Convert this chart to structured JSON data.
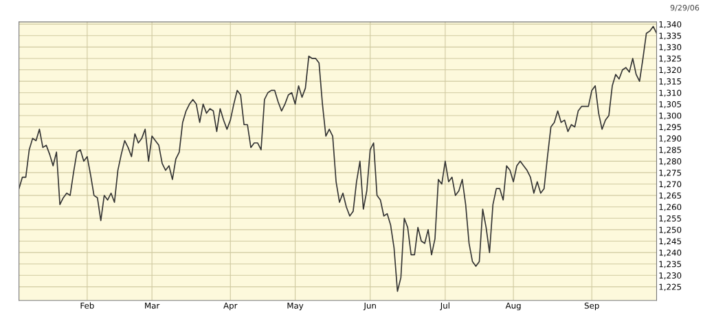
{
  "chart_data": {
    "type": "line",
    "annotations": [
      "9/29/06"
    ],
    "categories": [
      null,
      null,
      null,
      null,
      null,
      null,
      null,
      null,
      null,
      null,
      null,
      null,
      null,
      null,
      null,
      null,
      null,
      null,
      null,
      null,
      "Feb",
      null,
      null,
      null,
      null,
      null,
      null,
      null,
      null,
      null,
      null,
      null,
      null,
      null,
      null,
      null,
      null,
      null,
      null,
      "Mar",
      null,
      null,
      null,
      null,
      null,
      null,
      null,
      null,
      null,
      null,
      null,
      null,
      null,
      null,
      null,
      null,
      null,
      null,
      null,
      null,
      null,
      null,
      "Apr",
      null,
      null,
      null,
      null,
      null,
      null,
      null,
      null,
      null,
      null,
      null,
      null,
      null,
      null,
      null,
      null,
      null,
      null,
      "May",
      null,
      null,
      null,
      null,
      null,
      null,
      null,
      null,
      null,
      null,
      null,
      null,
      null,
      null,
      null,
      null,
      null,
      null,
      null,
      null,
      null,
      "Jun",
      null,
      null,
      null,
      null,
      null,
      null,
      null,
      null,
      null,
      null,
      null,
      null,
      null,
      null,
      null,
      null,
      null,
      null,
      null,
      null,
      null,
      "Jul",
      null,
      null,
      null,
      null,
      null,
      null,
      null,
      null,
      null,
      null,
      null,
      null,
      null,
      null,
      null,
      null,
      null,
      null,
      null,
      "Aug",
      null,
      null,
      null,
      null,
      null,
      null,
      null,
      null,
      null,
      null,
      null,
      null,
      null,
      null,
      null,
      null,
      null,
      null,
      null,
      null,
      null,
      null,
      "Sep",
      null,
      null,
      null,
      null,
      null,
      null,
      null,
      null,
      null,
      null,
      null,
      null,
      null,
      null,
      null,
      null,
      null,
      null,
      null
    ],
    "series": [
      {
        "color": "#333333",
        "values": [
          1268,
          1273,
          1273,
          1285,
          1290,
          1289,
          1294,
          1286,
          1287,
          1283,
          1278,
          1284,
          1261,
          1264,
          1266,
          1265,
          1275,
          1284,
          1285,
          1280,
          1282,
          1274,
          1265,
          1264,
          1254,
          1265,
          1263,
          1266,
          1262,
          1276,
          1283,
          1289,
          1286,
          1282,
          1292,
          1288,
          1290,
          1294,
          1280,
          1291,
          1289,
          1287,
          1279,
          1276,
          1278,
          1272,
          1281,
          1284,
          1297,
          1302,
          1305,
          1307,
          1305,
          1297,
          1305,
          1301,
          1303,
          1302,
          1293,
          1303,
          1298,
          1294,
          1298,
          1305,
          1311,
          1309,
          1296,
          1296,
          1286,
          1288,
          1288,
          1285,
          1307,
          1310,
          1311,
          1311,
          1306,
          1302,
          1305,
          1309,
          1310,
          1305,
          1313,
          1308,
          1312,
          1326,
          1325,
          1325,
          1323,
          1305,
          1291,
          1294,
          1291,
          1271,
          1262,
          1266,
          1260,
          1256,
          1258,
          1271,
          1280,
          1259,
          1267,
          1285,
          1288,
          1265,
          1263,
          1256,
          1257,
          1252,
          1242,
          1223,
          1229,
          1255,
          1251,
          1239,
          1239,
          1251,
          1245,
          1244,
          1250,
          1239,
          1246,
          1272,
          1270,
          1280,
          1271,
          1273,
          1265,
          1267,
          1272,
          1261,
          1244,
          1236,
          1234,
          1236,
          1259,
          1251,
          1240,
          1261,
          1268,
          1268,
          1263,
          1278,
          1276,
          1271,
          1278,
          1280,
          1278,
          1276,
          1273,
          1266,
          1271,
          1266,
          1268,
          1282,
          1295,
          1297,
          1302,
          1297,
          1298,
          1293,
          1296,
          1295,
          1302,
          1304,
          1304,
          1304,
          1311,
          1313,
          1301,
          1294,
          1298,
          1300,
          1313,
          1318,
          1316,
          1320,
          1321,
          1319,
          1325,
          1318,
          1315,
          1325,
          1336,
          1337,
          1339,
          1336
        ]
      }
    ],
    "ylim": [
      1219,
      1341
    ],
    "yticks": [
      {
        "value": 1225,
        "label": "1,225"
      },
      {
        "value": 1230,
        "label": "1,230"
      },
      {
        "value": 1235,
        "label": "1,235"
      },
      {
        "value": 1240,
        "label": "1,240"
      },
      {
        "value": 1245,
        "label": "1,245"
      },
      {
        "value": 1250,
        "label": "1,250"
      },
      {
        "value": 1255,
        "label": "1,255"
      },
      {
        "value": 1260,
        "label": "1,260"
      },
      {
        "value": 1265,
        "label": "1,265"
      },
      {
        "value": 1270,
        "label": "1,270"
      },
      {
        "value": 1275,
        "label": "1,275"
      },
      {
        "value": 1280,
        "label": "1,280"
      },
      {
        "value": 1285,
        "label": "1,285"
      },
      {
        "value": 1290,
        "label": "1,290"
      },
      {
        "value": 1295,
        "label": "1,295"
      },
      {
        "value": 1300,
        "label": "1,300"
      },
      {
        "value": 1305,
        "label": "1,305"
      },
      {
        "value": 1310,
        "label": "1,310"
      },
      {
        "value": 1315,
        "label": "1,315"
      },
      {
        "value": 1320,
        "label": "1,320"
      },
      {
        "value": 1325,
        "label": "1,325"
      },
      {
        "value": 1330,
        "label": "1,330"
      },
      {
        "value": 1335,
        "label": "1,335"
      },
      {
        "value": 1340,
        "label": "1,340"
      }
    ],
    "grid": true,
    "marker": "none",
    "line_style": "solid"
  }
}
